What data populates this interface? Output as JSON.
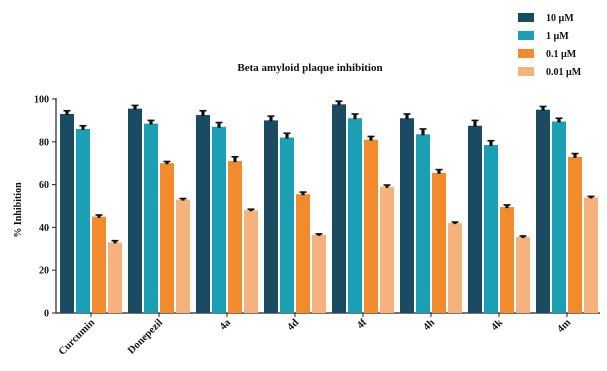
{
  "chart_data": {
    "type": "bar",
    "title": "Beta amyloid plaque inhibition",
    "xlabel": "",
    "ylabel": "% Inhibition",
    "ylim": [
      0,
      100
    ],
    "yticks": [
      0,
      20,
      40,
      60,
      80,
      100
    ],
    "grid": false,
    "legend_position": "top-right",
    "categories": [
      "Curcumin",
      "Donepezil",
      "4a",
      "4d",
      "4f",
      "4h",
      "4k",
      "4m"
    ],
    "series": [
      {
        "name": "10 µM",
        "color": "#1b4a63",
        "values": [
          93,
          95.5,
          92.5,
          90,
          97.5,
          91,
          87.5,
          95
        ],
        "errors": [
          1.5,
          1.5,
          2,
          2,
          1.5,
          2,
          2.5,
          1.5
        ]
      },
      {
        "name": "1 µM",
        "color": "#1b9fb5",
        "values": [
          86,
          88.5,
          87,
          82,
          91,
          83.5,
          78.5,
          89.5
        ],
        "errors": [
          1.5,
          1.5,
          2,
          2,
          2,
          2.5,
          2,
          1.5
        ]
      },
      {
        "name": "0.1 µM",
        "color": "#f28a2e",
        "values": [
          45,
          70,
          71,
          55.5,
          81,
          65.5,
          49.5,
          73
        ],
        "errors": [
          0.8,
          0.8,
          2,
          1,
          1.5,
          1.5,
          1,
          1.5
        ]
      },
      {
        "name": "0.01 µM",
        "color": "#f5b27d",
        "values": [
          33,
          53,
          48,
          36.5,
          59,
          42,
          35.5,
          54
        ],
        "errors": [
          0.8,
          0.5,
          0.5,
          0.5,
          0.8,
          0.5,
          0.5,
          0.5
        ]
      }
    ]
  }
}
